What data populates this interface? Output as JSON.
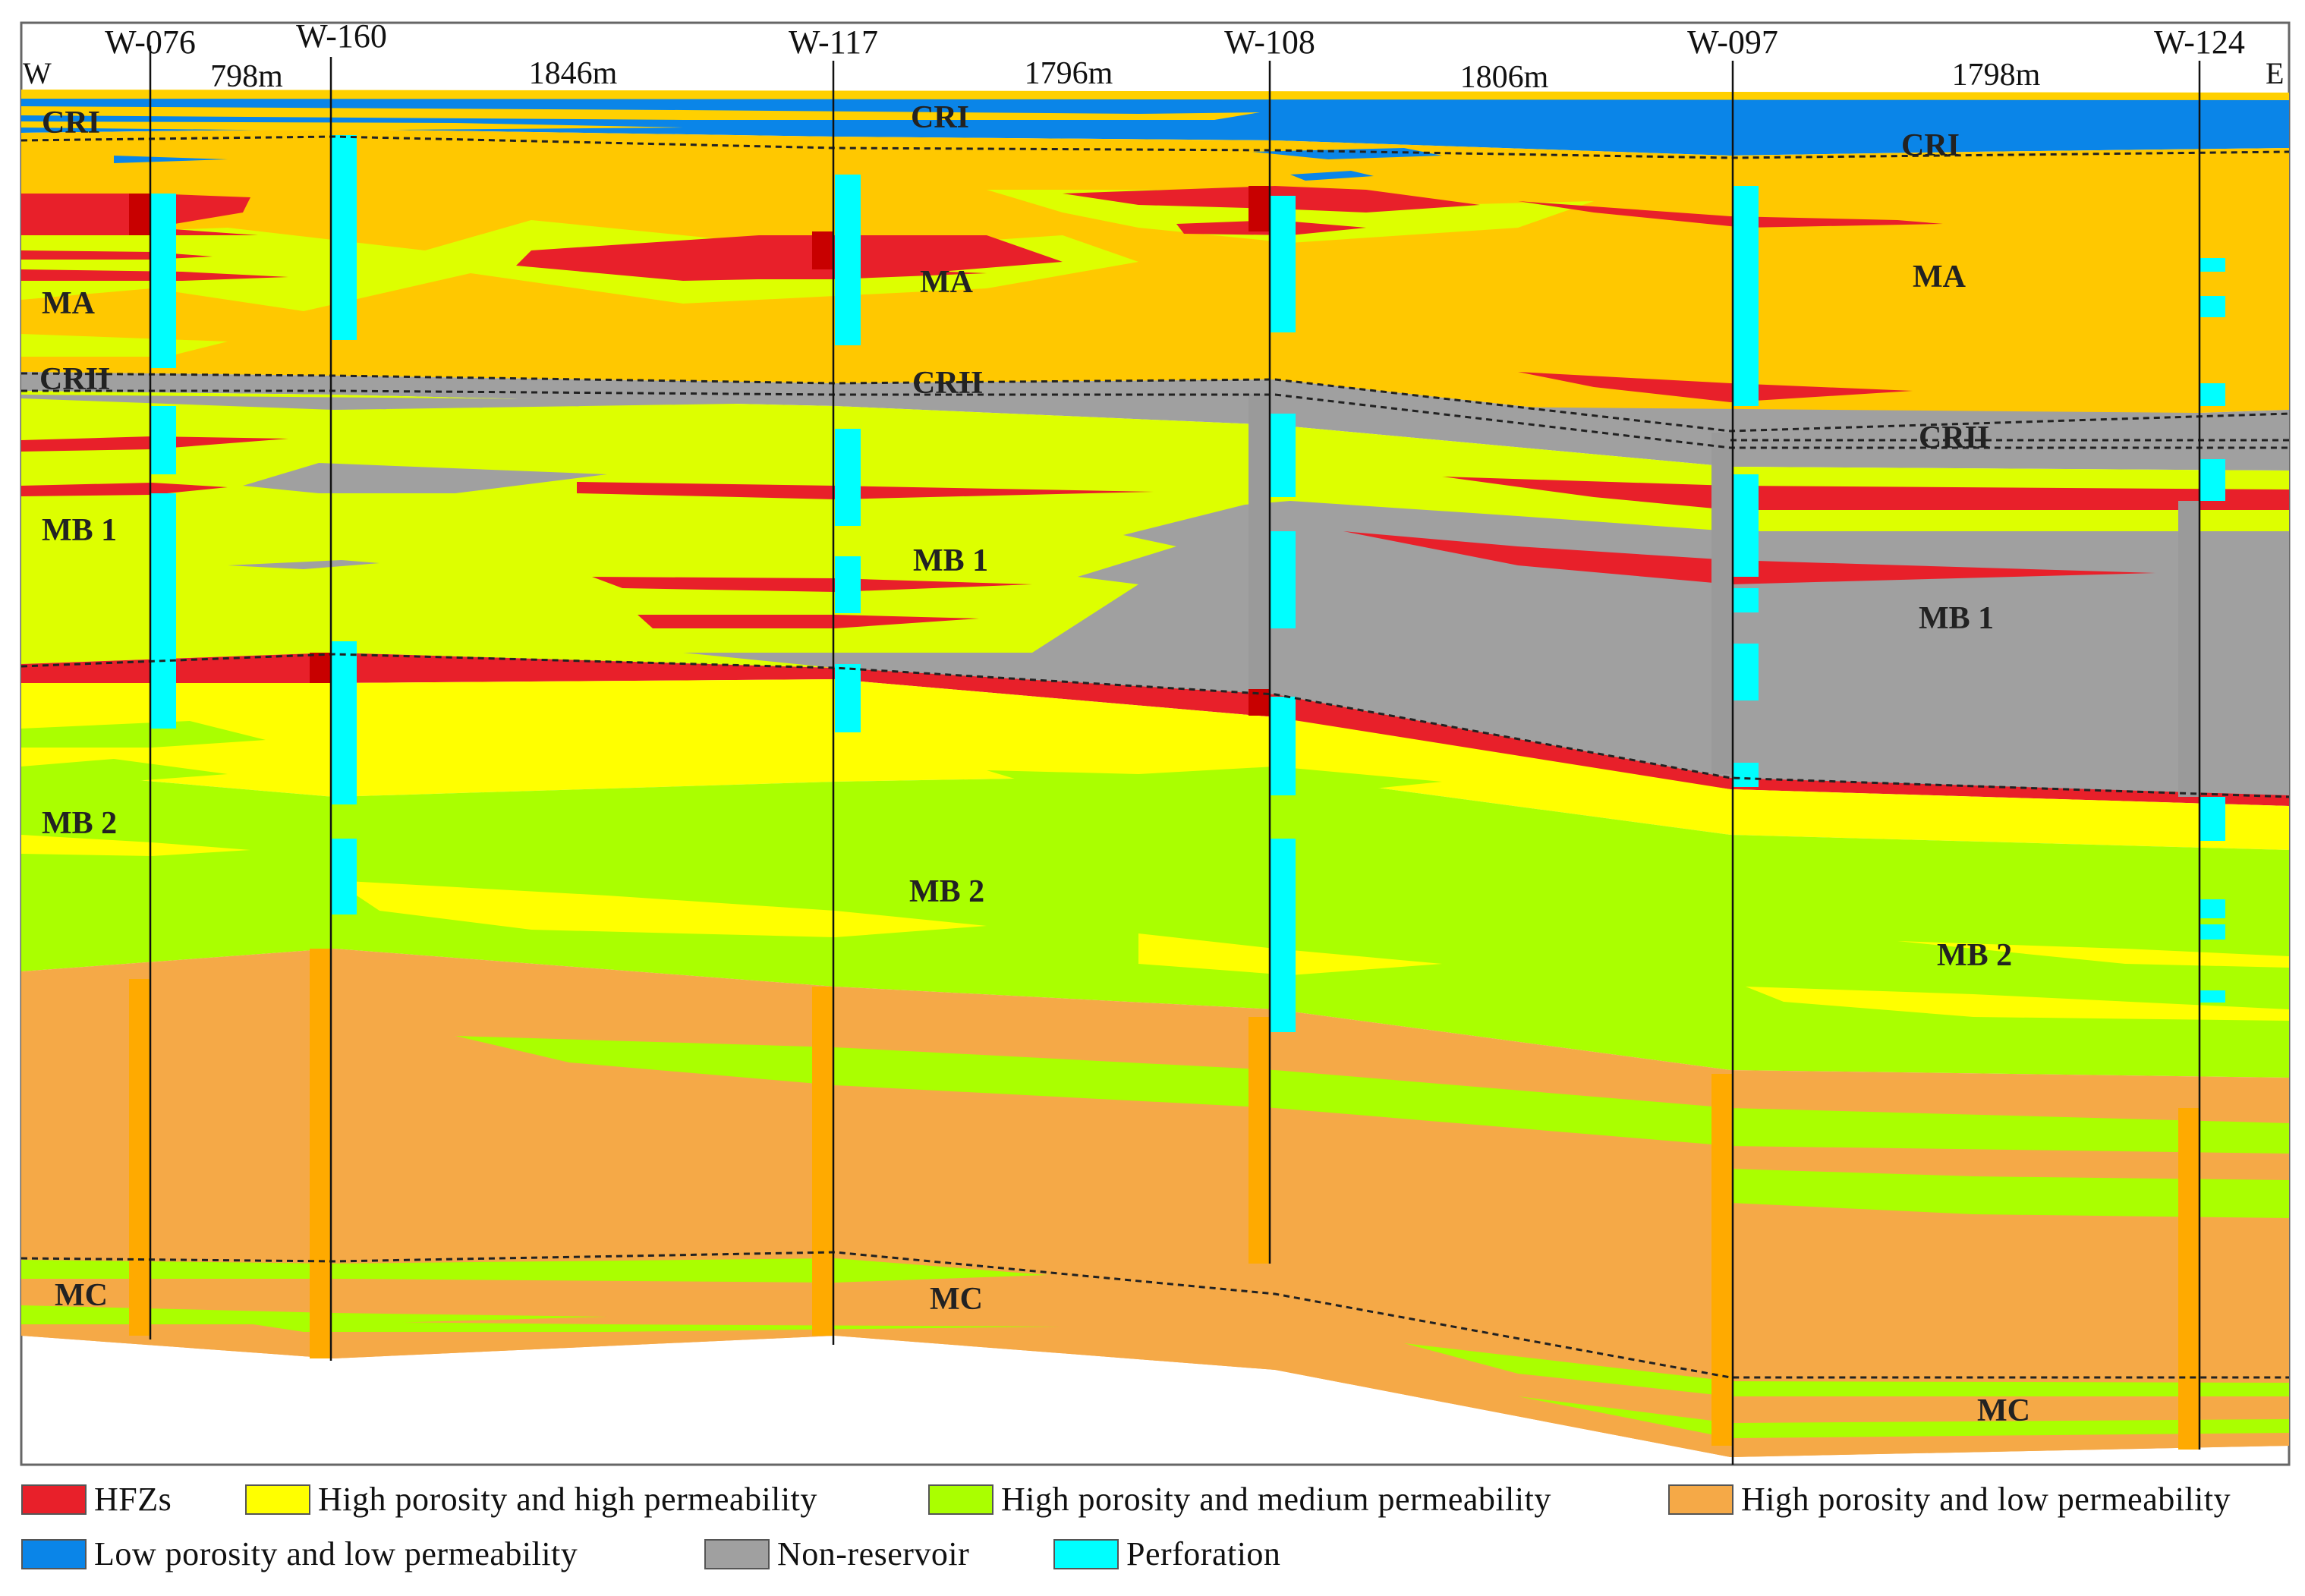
{
  "wells": [
    {
      "id": "w076",
      "name": "W-076"
    },
    {
      "id": "w160",
      "name": "W-160"
    },
    {
      "id": "w117",
      "name": "W-117"
    },
    {
      "id": "w108",
      "name": "W-108"
    },
    {
      "id": "w097",
      "name": "W-097"
    },
    {
      "id": "w124",
      "name": "W-124"
    }
  ],
  "distances": [
    "798m",
    "1846m",
    "1796m",
    "1806m",
    "1798m"
  ],
  "directions": {
    "west": "W",
    "east": "E"
  },
  "zones": {
    "cri": "CRI",
    "ma": "MA",
    "crii": "CRII",
    "mb1": "MB 1",
    "mb2": "MB 2",
    "mc": "MC"
  },
  "legend": [
    {
      "label": "HFZs",
      "color": "#e8202a"
    },
    {
      "label": "High porosity and high permeability",
      "color": "#ffff00"
    },
    {
      "label": "High porosity and medium permeability",
      "color": "#aaff00"
    },
    {
      "label": "High porosity and low permeability",
      "color": "#f5a947"
    },
    {
      "label": "Low porosity and low permeability",
      "color": "#0a85e8"
    },
    {
      "label": "Non-reservoir",
      "color": "#a0a0a0"
    },
    {
      "label": "Perforation",
      "color": "#00ffff"
    }
  ]
}
